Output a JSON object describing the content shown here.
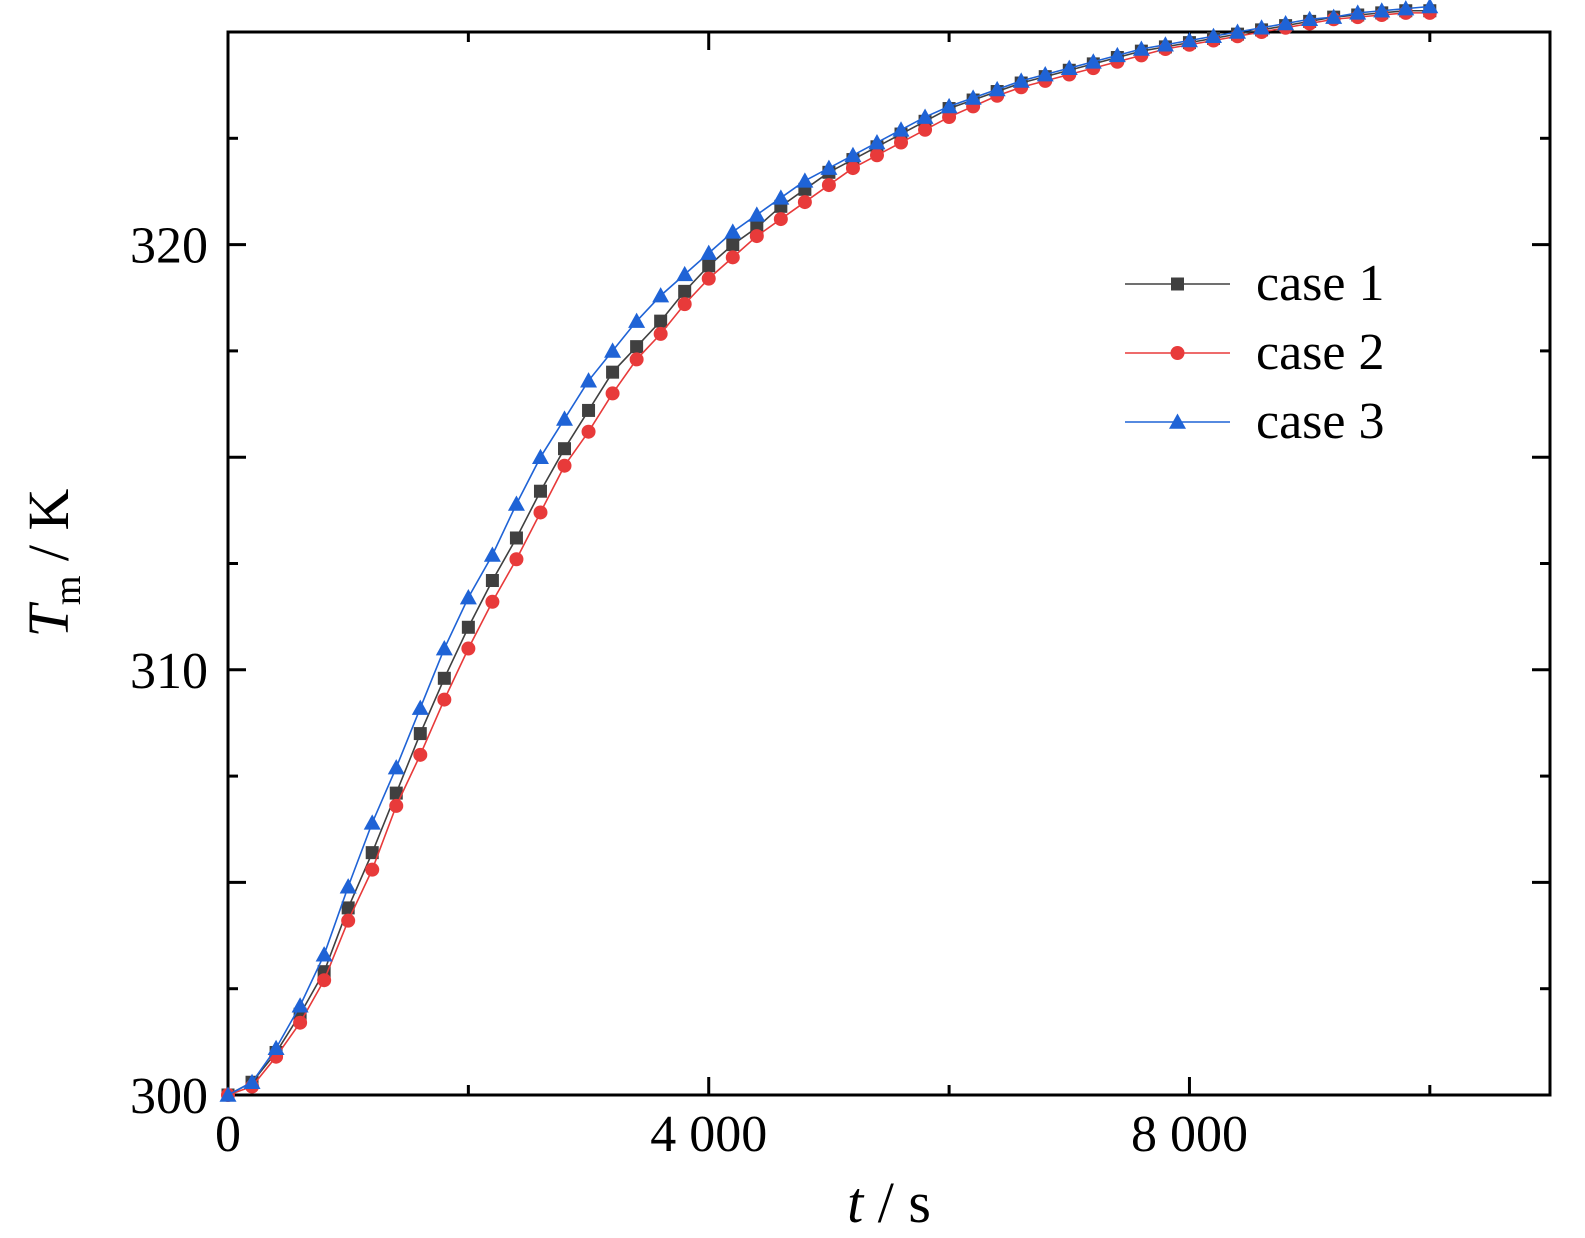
{
  "chart_data": {
    "type": "line",
    "xlabel": {
      "italic": "t",
      "rest": " / s"
    },
    "ylabel": {
      "italic": "T",
      "sub": "m",
      "rest": " / K"
    },
    "xlim": [
      0,
      11000
    ],
    "ylim": [
      300,
      325
    ],
    "xticks": [
      0,
      4000,
      8000
    ],
    "xtick_labels": [
      "0",
      "4 000",
      "8 000"
    ],
    "yticks": [
      300,
      310,
      320
    ],
    "ytick_labels": [
      "300",
      "310",
      "320"
    ],
    "minor_ticks": true,
    "grid": false,
    "legend_position": "top-right",
    "x": [
      0,
      200,
      400,
      600,
      800,
      1000,
      1200,
      1400,
      1600,
      1800,
      2000,
      2200,
      2400,
      2600,
      2800,
      3000,
      3200,
      3400,
      3600,
      3800,
      4000,
      4200,
      4400,
      4600,
      4800,
      5000,
      5200,
      5400,
      5600,
      5800,
      6000,
      6200,
      6400,
      6600,
      6800,
      7000,
      7200,
      7400,
      7600,
      7800,
      8000,
      8200,
      8400,
      8600,
      8800,
      9000,
      9200,
      9400,
      9600,
      9800,
      10000
    ],
    "series": [
      {
        "name": "case 1",
        "color": "#404040",
        "marker": "square",
        "values": [
          300.0,
          300.3,
          301.0,
          301.9,
          302.9,
          304.4,
          305.7,
          307.1,
          308.5,
          309.8,
          311.0,
          312.1,
          313.1,
          314.2,
          315.2,
          316.1,
          317.0,
          317.6,
          318.2,
          318.9,
          319.5,
          320.0,
          320.4,
          320.9,
          321.3,
          321.7,
          322.0,
          322.3,
          322.6,
          322.9,
          323.2,
          323.4,
          323.6,
          323.8,
          323.95,
          324.1,
          324.25,
          324.4,
          324.55,
          324.65,
          324.75,
          324.85,
          324.95,
          325.05,
          325.15,
          325.25,
          325.35,
          325.4,
          325.45,
          325.5,
          325.5
        ]
      },
      {
        "name": "case 2",
        "color": "#e83a3a",
        "marker": "circle",
        "values": [
          300.0,
          300.2,
          300.9,
          301.7,
          302.7,
          304.1,
          305.3,
          306.8,
          308.0,
          309.3,
          310.5,
          311.6,
          312.6,
          313.7,
          314.8,
          315.6,
          316.5,
          317.3,
          317.9,
          318.6,
          319.2,
          319.7,
          320.2,
          320.6,
          321.0,
          321.4,
          321.8,
          322.1,
          322.4,
          322.7,
          323.0,
          323.25,
          323.5,
          323.7,
          323.85,
          324.0,
          324.15,
          324.3,
          324.45,
          324.6,
          324.7,
          324.8,
          324.9,
          325.0,
          325.1,
          325.2,
          325.3,
          325.35,
          325.4,
          325.45,
          325.45
        ]
      },
      {
        "name": "case 3",
        "color": "#1f63d6",
        "marker": "triangle",
        "values": [
          300.0,
          300.3,
          301.1,
          302.1,
          303.3,
          304.9,
          306.4,
          307.7,
          309.1,
          310.5,
          311.7,
          312.7,
          313.9,
          315.0,
          315.9,
          316.8,
          317.5,
          318.2,
          318.8,
          319.3,
          319.8,
          320.3,
          320.7,
          321.1,
          321.5,
          321.8,
          322.1,
          322.4,
          322.7,
          323.0,
          323.25,
          323.45,
          323.65,
          323.85,
          324.0,
          324.15,
          324.3,
          324.45,
          324.6,
          324.7,
          324.8,
          324.9,
          325.0,
          325.1,
          325.2,
          325.3,
          325.35,
          325.45,
          325.5,
          325.55,
          325.6
        ]
      }
    ]
  }
}
